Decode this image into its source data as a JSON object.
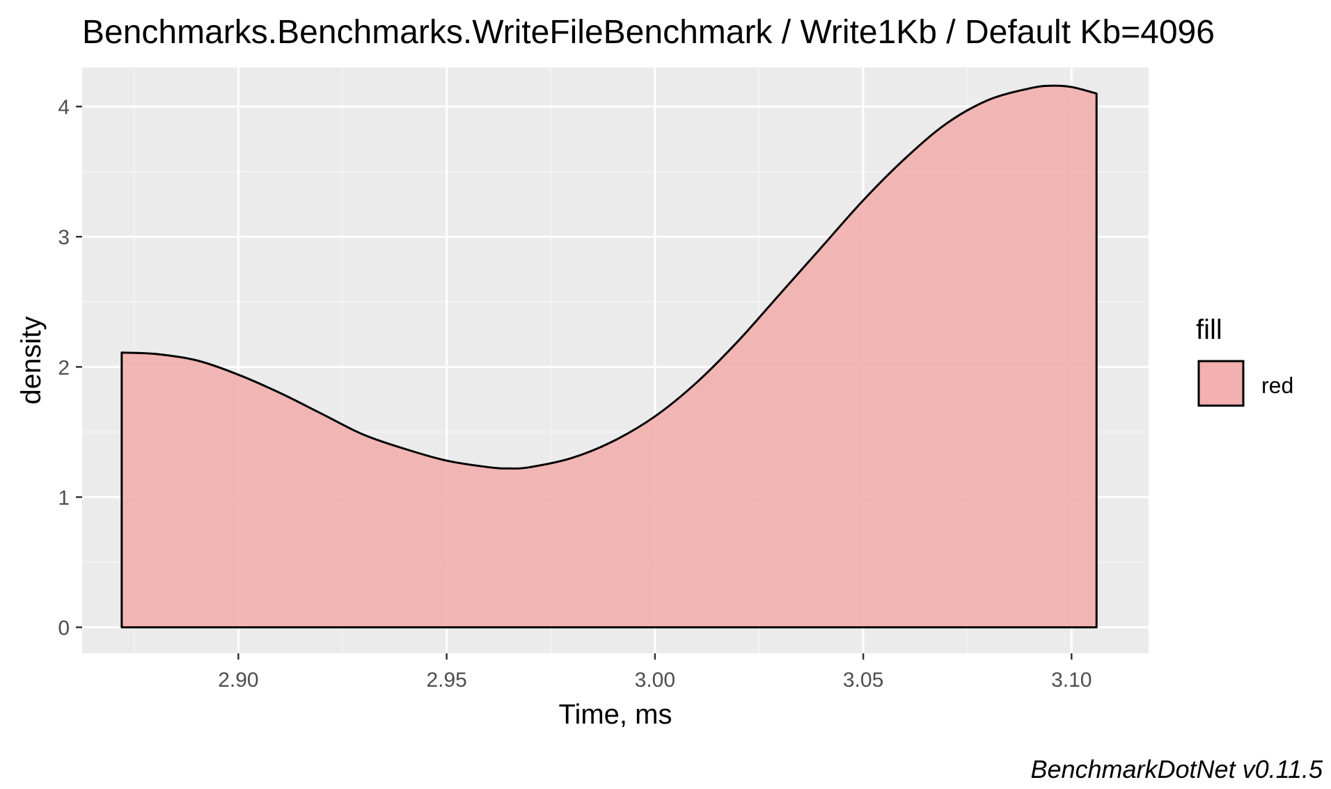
{
  "chart_data": {
    "type": "area",
    "title": "Benchmarks.Benchmarks.WriteFileBenchmark / Write1Kb / Default Kb=4096",
    "xlabel": "Time, ms",
    "ylabel": "density",
    "xlim": [
      2.8625,
      3.1185
    ],
    "ylim": [
      -0.2,
      4.3
    ],
    "x_ticks": [
      2.9,
      2.95,
      3.0,
      3.05,
      3.1
    ],
    "x_tick_labels": [
      "2.90",
      "2.95",
      "3.00",
      "3.05",
      "3.10"
    ],
    "y_ticks": [
      0,
      1,
      2,
      3,
      4
    ],
    "y_tick_labels": [
      "0",
      "1",
      "2",
      "3",
      "4"
    ],
    "grid": true,
    "legend": {
      "title": "fill",
      "position": "right",
      "entries": [
        {
          "label": "red",
          "color": "#F2B0AE"
        }
      ]
    },
    "series": [
      {
        "x": [
          2.872,
          2.88,
          2.89,
          2.9,
          2.91,
          2.92,
          2.93,
          2.94,
          2.95,
          2.96,
          2.965,
          2.97,
          2.98,
          2.99,
          3.0,
          3.01,
          3.02,
          3.03,
          3.04,
          3.05,
          3.06,
          3.07,
          3.08,
          3.09,
          3.095,
          3.1,
          3.106
        ],
        "values": [
          2.11,
          2.1,
          2.05,
          1.94,
          1.8,
          1.64,
          1.48,
          1.37,
          1.28,
          1.23,
          1.22,
          1.23,
          1.3,
          1.43,
          1.62,
          1.88,
          2.2,
          2.56,
          2.92,
          3.28,
          3.6,
          3.87,
          4.05,
          4.14,
          4.16,
          4.15,
          4.1
        ]
      }
    ],
    "caption": "BenchmarkDotNet v0.11.5"
  },
  "colors": {
    "panel": "#EBEBEB",
    "grid_major": "#FFFFFF",
    "grid_minor": "#F5F5F5",
    "area_fill": "#F2B0AE",
    "outline": "#000000",
    "tick": "#333333"
  }
}
